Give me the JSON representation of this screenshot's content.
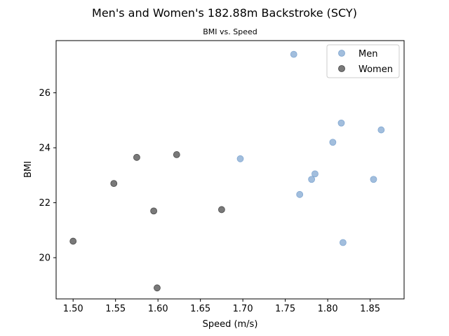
{
  "chart_data": {
    "type": "scatter",
    "title": "Men's and Women's 182.88m Backstroke (SCY)",
    "subtitle": "BMI vs. Speed",
    "xlabel": "Speed (m/s)",
    "ylabel": "BMI",
    "xlim": [
      1.48,
      1.89
    ],
    "ylim": [
      18.5,
      27.9
    ],
    "xticks": [
      "1.50",
      "1.55",
      "1.60",
      "1.65",
      "1.70",
      "1.75",
      "1.80",
      "1.85"
    ],
    "xtick_values": [
      1.5,
      1.55,
      1.6,
      1.65,
      1.7,
      1.75,
      1.8,
      1.85
    ],
    "yticks": [
      "20",
      "22",
      "24",
      "26"
    ],
    "ytick_values": [
      20,
      22,
      24,
      26
    ],
    "grid": false,
    "legend_position": "top-right",
    "series": [
      {
        "name": "Men",
        "color": "#7ba3cf",
        "points": [
          [
            1.76,
            27.4
          ],
          [
            1.697,
            23.6
          ],
          [
            1.767,
            22.3
          ],
          [
            1.781,
            22.85
          ],
          [
            1.785,
            23.05
          ],
          [
            1.806,
            24.2
          ],
          [
            1.816,
            24.9
          ],
          [
            1.818,
            20.55
          ],
          [
            1.854,
            22.85
          ],
          [
            1.863,
            24.65
          ]
        ]
      },
      {
        "name": "Women",
        "color": "#404040",
        "points": [
          [
            1.5,
            20.6
          ],
          [
            1.548,
            22.7
          ],
          [
            1.575,
            23.65
          ],
          [
            1.595,
            21.7
          ],
          [
            1.599,
            18.9
          ],
          [
            1.622,
            23.75
          ],
          [
            1.675,
            21.75
          ]
        ]
      }
    ]
  }
}
